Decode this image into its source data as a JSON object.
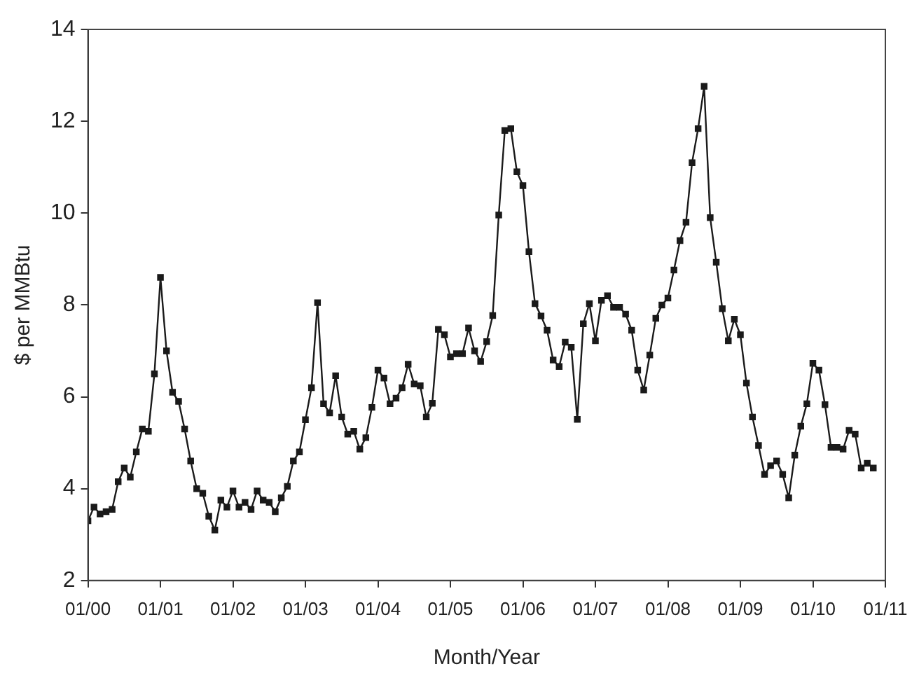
{
  "chart_data": {
    "type": "line",
    "xlabel": "Month/Year",
    "ylabel": "$ per MMBtu",
    "x": [
      "2000-01",
      "2000-02",
      "2000-03",
      "2000-04",
      "2000-05",
      "2000-06",
      "2000-07",
      "2000-08",
      "2000-09",
      "2000-10",
      "2000-11",
      "2000-12",
      "2001-01",
      "2001-02",
      "2001-03",
      "2001-04",
      "2001-05",
      "2001-06",
      "2001-07",
      "2001-08",
      "2001-09",
      "2001-10",
      "2001-11",
      "2001-12",
      "2002-01",
      "2002-02",
      "2002-03",
      "2002-04",
      "2002-05",
      "2002-06",
      "2002-07",
      "2002-08",
      "2002-09",
      "2002-10",
      "2002-11",
      "2002-12",
      "2003-01",
      "2003-02",
      "2003-03",
      "2003-04",
      "2003-05",
      "2003-06",
      "2003-07",
      "2003-08",
      "2003-09",
      "2003-10",
      "2003-11",
      "2003-12",
      "2004-01",
      "2004-02",
      "2004-03",
      "2004-04",
      "2004-05",
      "2004-06",
      "2004-07",
      "2004-08",
      "2004-09",
      "2004-10",
      "2004-11",
      "2004-12",
      "2005-01",
      "2005-02",
      "2005-03",
      "2005-04",
      "2005-05",
      "2005-06",
      "2005-07",
      "2005-08",
      "2005-09",
      "2005-10",
      "2005-11",
      "2005-12",
      "2006-01",
      "2006-02",
      "2006-03",
      "2006-04",
      "2006-05",
      "2006-06",
      "2006-07",
      "2006-08",
      "2006-09",
      "2006-10",
      "2006-11",
      "2006-12",
      "2007-01",
      "2007-02",
      "2007-03",
      "2007-04",
      "2007-05",
      "2007-06",
      "2007-07",
      "2007-08",
      "2007-09",
      "2007-10",
      "2007-11",
      "2007-12",
      "2008-01",
      "2008-02",
      "2008-03",
      "2008-04",
      "2008-05",
      "2008-06",
      "2008-07",
      "2008-08",
      "2008-09",
      "2008-10",
      "2008-11",
      "2008-12",
      "2009-01",
      "2009-02",
      "2009-03",
      "2009-04",
      "2009-05",
      "2009-06",
      "2009-07",
      "2009-08",
      "2009-09",
      "2009-10",
      "2009-11",
      "2009-12",
      "2010-01",
      "2010-02",
      "2010-03",
      "2010-04",
      "2010-05",
      "2010-06",
      "2010-07",
      "2010-08",
      "2010-09",
      "2010-10",
      "2010-11"
    ],
    "series": [
      {
        "color": "#1a1a1a",
        "values": [
          3.3,
          3.6,
          3.45,
          3.5,
          3.55,
          4.15,
          4.45,
          4.25,
          4.8,
          5.3,
          5.25,
          6.5,
          8.6,
          7.0,
          6.1,
          5.9,
          5.3,
          4.6,
          4.0,
          3.9,
          3.4,
          3.1,
          3.75,
          3.6,
          3.95,
          3.6,
          3.7,
          3.55,
          3.95,
          3.75,
          3.7,
          3.5,
          3.8,
          4.05,
          4.6,
          4.8,
          5.5,
          6.2,
          8.05,
          5.85,
          5.65,
          6.46,
          5.56,
          5.19,
          5.25,
          4.86,
          5.11,
          5.77,
          6.58,
          6.41,
          5.85,
          5.97,
          6.2,
          6.71,
          6.28,
          6.24,
          5.56,
          5.86,
          7.47,
          7.35,
          6.87,
          6.94,
          6.94,
          7.5,
          7.0,
          6.77,
          7.2,
          7.77,
          9.96,
          11.8,
          11.84,
          10.9,
          10.6,
          9.16,
          8.03,
          7.76,
          7.45,
          6.8,
          6.66,
          7.19,
          7.08,
          5.51,
          7.59,
          8.03,
          7.22,
          8.1,
          8.2,
          7.95,
          7.95,
          7.8,
          7.45,
          6.58,
          6.15,
          6.91,
          7.71,
          8.0,
          8.15,
          8.76,
          9.4,
          9.8,
          11.1,
          11.84,
          12.76,
          9.9,
          8.93,
          7.92,
          7.22,
          7.69,
          7.35,
          6.3,
          5.56,
          4.94,
          4.31,
          4.5,
          4.6,
          4.31,
          3.8,
          4.73,
          5.36,
          5.85,
          6.73,
          6.58,
          5.83,
          4.9,
          4.9,
          4.86,
          5.27,
          5.19,
          4.45,
          4.55,
          4.45
        ]
      }
    ],
    "xlim": [
      "2000-01",
      "2011-01"
    ],
    "xticks": [
      {
        "value": "2000-01",
        "label": "01/00"
      },
      {
        "value": "2001-01",
        "label": "01/01"
      },
      {
        "value": "2002-01",
        "label": "01/02"
      },
      {
        "value": "2003-01",
        "label": "01/03"
      },
      {
        "value": "2004-01",
        "label": "01/04"
      },
      {
        "value": "2005-01",
        "label": "01/05"
      },
      {
        "value": "2006-01",
        "label": "01/06"
      },
      {
        "value": "2007-01",
        "label": "01/07"
      },
      {
        "value": "2008-01",
        "label": "01/08"
      },
      {
        "value": "2009-01",
        "label": "01/09"
      },
      {
        "value": "2010-01",
        "label": "01/10"
      },
      {
        "value": "2011-01",
        "label": "01/11"
      }
    ],
    "ylim": [
      2,
      14
    ],
    "yticks": [
      2,
      4,
      6,
      8,
      10,
      12,
      14
    ],
    "grid": false,
    "legend": false,
    "marker": "square",
    "line_style": "solid"
  }
}
